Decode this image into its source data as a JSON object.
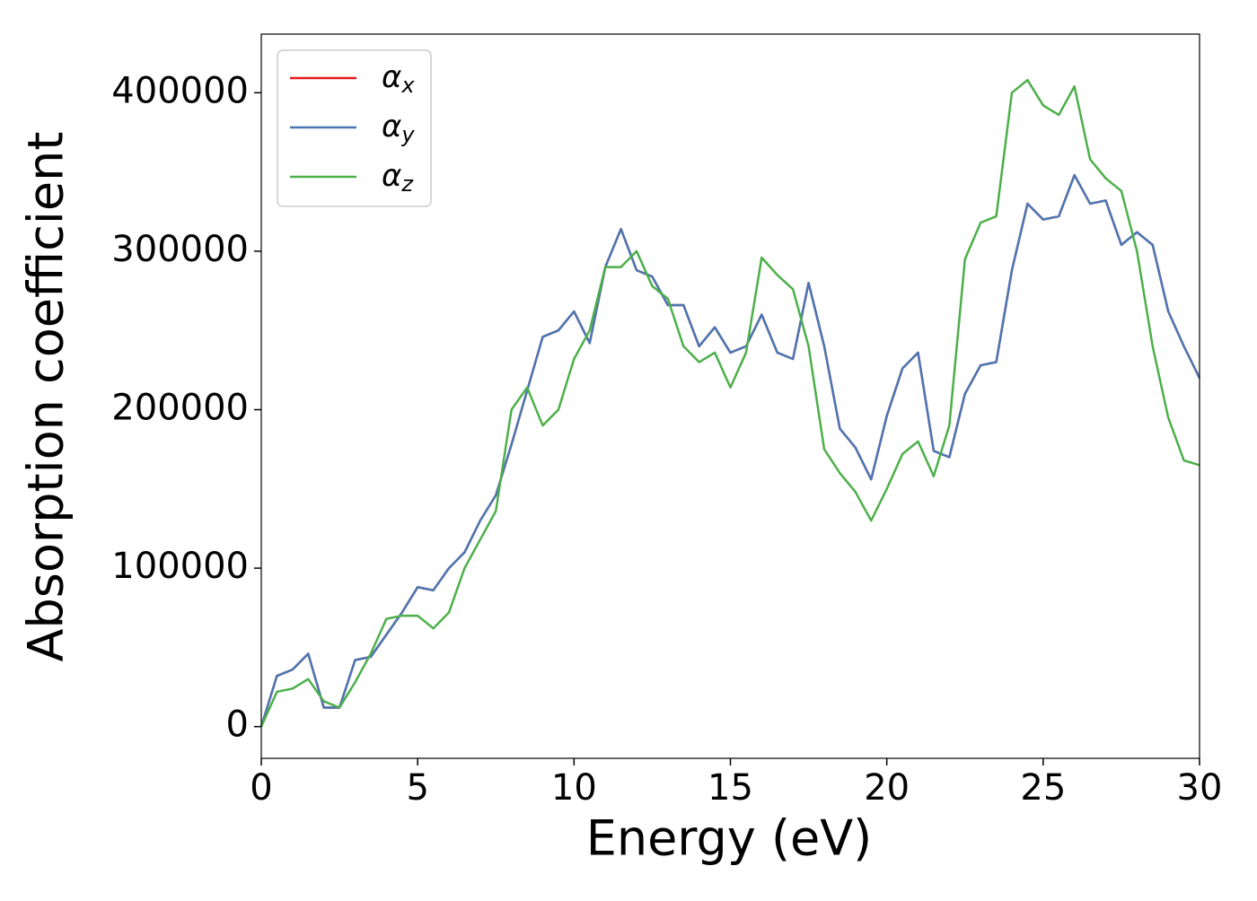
{
  "chart_data": {
    "type": "line",
    "xlabel": "Energy (eV)",
    "ylabel": "Absorption coefficient",
    "x": [
      0,
      0.5,
      1,
      1.5,
      2,
      2.5,
      3,
      3.5,
      4,
      4.5,
      5,
      5.5,
      6,
      6.5,
      7,
      7.5,
      8,
      8.5,
      9,
      9.5,
      10,
      10.5,
      11,
      11.5,
      12,
      12.5,
      13,
      13.5,
      14,
      14.5,
      15,
      15.5,
      16,
      16.5,
      17,
      17.5,
      18,
      18.5,
      19,
      19.5,
      20,
      20.5,
      21,
      21.5,
      22,
      22.5,
      23,
      23.5,
      24,
      24.5,
      25,
      25.5,
      26,
      26.5,
      27,
      27.5,
      28,
      28.5,
      29,
      29.5,
      30
    ],
    "series": [
      {
        "name": "αx",
        "color": "#e41a1c",
        "values": [
          0,
          32000,
          36000,
          46000,
          12000,
          12000,
          42000,
          44000,
          58000,
          72000,
          88000,
          86000,
          100000,
          110000,
          130000,
          146000,
          178000,
          212000,
          246000,
          250000,
          262000,
          242000,
          290000,
          314000,
          288000,
          284000,
          266000,
          266000,
          240000,
          252000,
          236000,
          240000,
          260000,
          236000,
          232000,
          280000,
          240000,
          188000,
          176000,
          156000,
          196000,
          226000,
          236000,
          174000,
          170000,
          210000,
          228000,
          230000,
          288000,
          330000,
          320000,
          322000,
          348000,
          330000,
          332000,
          304000,
          312000,
          304000,
          262000,
          240000,
          220000
        ]
      },
      {
        "name": "αy",
        "color": "#4a77b4",
        "values": [
          0,
          32000,
          36000,
          46000,
          12000,
          12000,
          42000,
          44000,
          58000,
          72000,
          88000,
          86000,
          100000,
          110000,
          130000,
          146000,
          178000,
          212000,
          246000,
          250000,
          262000,
          242000,
          290000,
          314000,
          288000,
          284000,
          266000,
          266000,
          240000,
          252000,
          236000,
          240000,
          260000,
          236000,
          232000,
          280000,
          240000,
          188000,
          176000,
          156000,
          196000,
          226000,
          236000,
          174000,
          170000,
          210000,
          228000,
          230000,
          288000,
          330000,
          320000,
          322000,
          348000,
          330000,
          332000,
          304000,
          312000,
          304000,
          262000,
          240000,
          220000
        ]
      },
      {
        "name": "αz",
        "color": "#4daf4a",
        "values": [
          0,
          22000,
          24000,
          30000,
          16000,
          12000,
          28000,
          46000,
          68000,
          70000,
          70000,
          62000,
          72000,
          100000,
          118000,
          136000,
          200000,
          214000,
          190000,
          200000,
          232000,
          250000,
          290000,
          290000,
          300000,
          278000,
          270000,
          240000,
          230000,
          236000,
          214000,
          236000,
          296000,
          285000,
          276000,
          240000,
          175000,
          160000,
          148000,
          130000,
          150000,
          172000,
          180000,
          158000,
          190000,
          295000,
          318000,
          322000,
          400000,
          408000,
          392000,
          386000,
          404000,
          358000,
          346000,
          338000,
          300000,
          240000,
          195000,
          168000,
          165000
        ]
      }
    ],
    "xlim": [
      0,
      30
    ],
    "xticks": [
      0,
      5,
      10,
      15,
      20,
      25,
      30
    ],
    "ylim": [
      -20000,
      437000
    ],
    "yticks": [
      0,
      100000,
      200000,
      300000,
      400000
    ],
    "legend": "upper left"
  }
}
